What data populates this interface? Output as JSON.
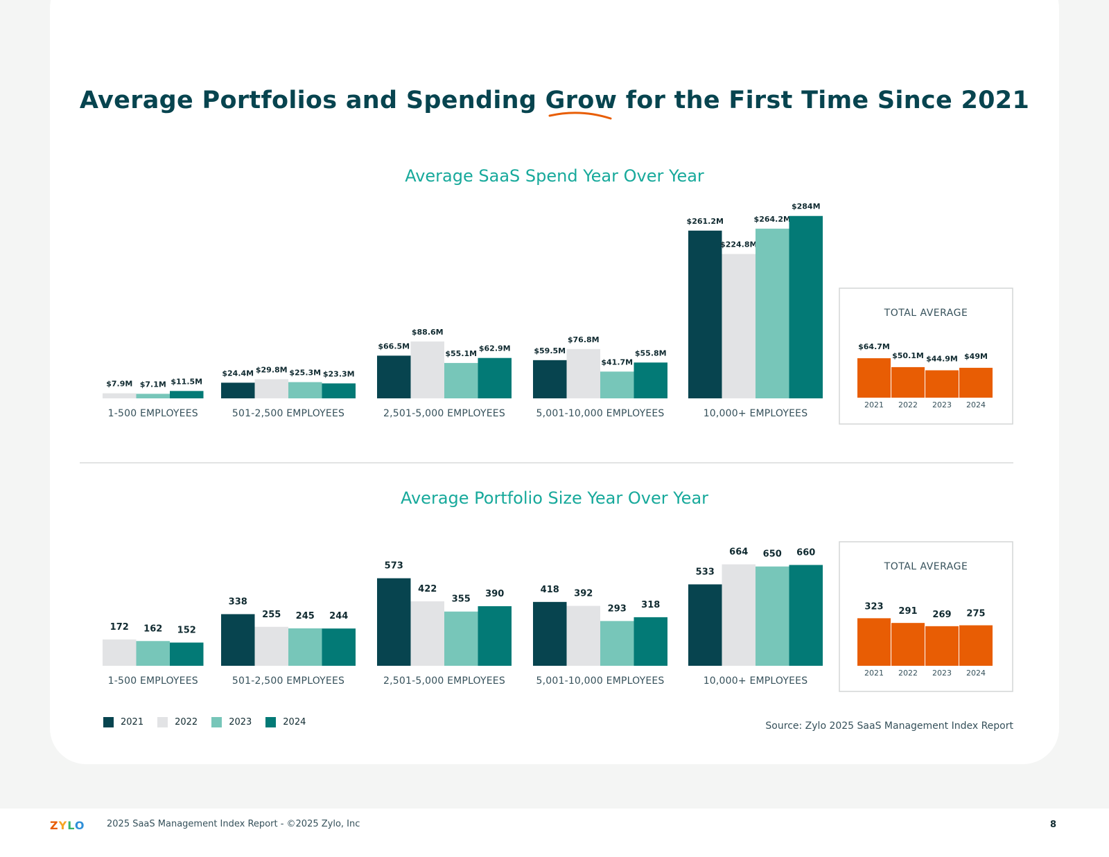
{
  "page": {
    "title": "Average Portfolios and Spending Grow for the First Time Since 2021",
    "source": "Source: Zylo 2025 SaaS Management Index Report",
    "footer": "2025 SaaS Management Index Report - ©2025 Zylo, Inc",
    "page_number": "8",
    "logo_text": "ZYLO"
  },
  "colors": {
    "2021": "#07444f",
    "2022": "#e2e3e5",
    "2023": "#77c6b9",
    "2024": "#037a76",
    "total": "#e85d04",
    "title_accent": "#17a99b"
  },
  "legend": [
    "2021",
    "2022",
    "2023",
    "2024"
  ],
  "chart_data": [
    {
      "type": "bar",
      "title": "Average SaaS Spend Year Over Year",
      "categories": [
        "1-500 EMPLOYEES",
        "501-2,500 EMPLOYEES",
        "2,501-5,000 EMPLOYEES",
        "5,001-10,000 EMPLOYEES",
        "10,000+ EMPLOYEES"
      ],
      "series": [
        {
          "name": "2021",
          "values": [
            null,
            24.4,
            66.5,
            59.5,
            261.2
          ],
          "labels": [
            null,
            "$24.4M",
            "$66.5M",
            "$59.5M",
            "$261.2M"
          ]
        },
        {
          "name": "2022",
          "values": [
            7.9,
            29.8,
            88.6,
            76.8,
            224.8
          ],
          "labels": [
            "$7.9M",
            "$29.8M",
            "$88.6M",
            "$76.8M",
            "$224.8M"
          ]
        },
        {
          "name": "2023",
          "values": [
            7.1,
            25.3,
            55.1,
            41.7,
            264.2
          ],
          "labels": [
            "$7.1M",
            "$25.3M",
            "$55.1M",
            "$41.7M",
            "$264.2M"
          ]
        },
        {
          "name": "2024",
          "values": [
            11.5,
            23.3,
            62.9,
            55.8,
            284
          ],
          "labels": [
            "$11.5M",
            "$23.3M",
            "$62.9M",
            "$55.8M",
            "$284M"
          ]
        }
      ],
      "total_average": {
        "title": "TOTAL AVERAGE",
        "categories": [
          "2021",
          "2022",
          "2023",
          "2024"
        ],
        "values": [
          64.7,
          50.1,
          44.9,
          49
        ],
        "labels": [
          "$64.7M",
          "$50.1M",
          "$44.9M",
          "$49M"
        ]
      }
    },
    {
      "type": "bar",
      "title": "Average Portfolio Size Year Over Year",
      "categories": [
        "1-500 EMPLOYEES",
        "501-2,500 EMPLOYEES",
        "2,501-5,000 EMPLOYEES",
        "5,001-10,000 EMPLOYEES",
        "10,000+ EMPLOYEES"
      ],
      "series": [
        {
          "name": "2021",
          "values": [
            null,
            338,
            573,
            418,
            533
          ],
          "labels": [
            null,
            "338",
            "573",
            "418",
            "533"
          ]
        },
        {
          "name": "2022",
          "values": [
            172,
            255,
            422,
            392,
            664
          ],
          "labels": [
            "172",
            "255",
            "422",
            "392",
            "664"
          ]
        },
        {
          "name": "2023",
          "values": [
            162,
            245,
            355,
            293,
            650
          ],
          "labels": [
            "162",
            "245",
            "355",
            "293",
            "650"
          ]
        },
        {
          "name": "2024",
          "values": [
            152,
            244,
            390,
            318,
            660
          ],
          "labels": [
            "152",
            "244",
            "390",
            "318",
            "660"
          ]
        }
      ],
      "total_average": {
        "title": "TOTAL AVERAGE",
        "categories": [
          "2021",
          "2022",
          "2023",
          "2024"
        ],
        "values": [
          323,
          291,
          269,
          275
        ],
        "labels": [
          "323",
          "291",
          "269",
          "275"
        ]
      }
    }
  ]
}
